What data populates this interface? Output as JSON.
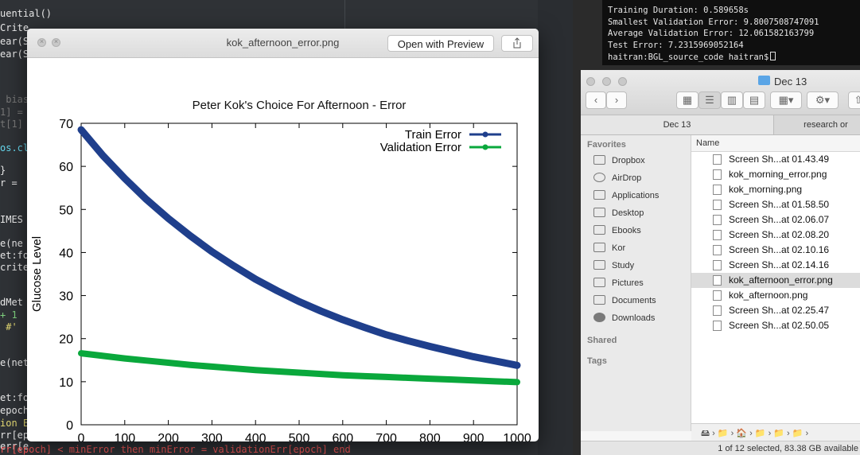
{
  "editor": {
    "lines": [
      {
        "t": "uential()",
        "c": ""
      },
      {
        "t": "Crite",
        "c": ""
      },
      {
        "t": "ear(S",
        "c": ""
      },
      {
        "t": "ear(S",
        "c": ""
      },
      {
        "t": " bias",
        "c": "dim"
      },
      {
        "t": "1] =",
        "c": "dim"
      },
      {
        "t": "t[1]",
        "c": "dim"
      },
      {
        "t": "os.cl",
        "c": "kw-c"
      },
      {
        "t": "}",
        "c": ""
      },
      {
        "t": "r =",
        "c": ""
      },
      {
        "t": "IMES",
        "c": ""
      },
      {
        "t": "e(ne",
        "c": ""
      },
      {
        "t": "et:fo",
        "c": ""
      },
      {
        "t": "crite",
        "c": ""
      },
      {
        "t": "dMet",
        "c": ""
      },
      {
        "t": "+ 1",
        "c": "kw-g"
      },
      {
        "t": " #'",
        "c": "kw-y"
      },
      {
        "t": "e(net",
        "c": ""
      },
      {
        "t": "et:fo",
        "c": ""
      },
      {
        "t": "epoch",
        "c": ""
      },
      {
        "t": "ion E",
        "c": "kw-y"
      },
      {
        "t": "rr[ep",
        "c": ""
      },
      {
        "t": "err[e",
        "c": ""
      },
      {
        "t": "rr[epoch] < minError then minError = validationErr[epoch] end",
        "c": "kw-r"
      }
    ]
  },
  "preview": {
    "window_title": "kok_afternoon_error.png",
    "open_with_label": "Open with Preview"
  },
  "chart_data": {
    "type": "line",
    "title": "Peter Kok's Choice For Afternoon - Error",
    "xlabel": "",
    "ylabel": "Glucose Level",
    "xlim": [
      0,
      1000
    ],
    "ylim": [
      0,
      70
    ],
    "xticks": [
      0,
      100,
      200,
      300,
      400,
      500,
      600,
      700,
      800,
      900,
      1000
    ],
    "yticks": [
      0,
      10,
      20,
      30,
      40,
      50,
      60,
      70
    ],
    "grid": false,
    "legend": "top-right",
    "x": [
      0,
      50,
      100,
      150,
      200,
      250,
      300,
      350,
      400,
      450,
      500,
      550,
      600,
      650,
      700,
      750,
      800,
      850,
      900,
      950,
      1000
    ],
    "series": [
      {
        "name": "Train Error",
        "color": "#1f3f8c",
        "values": [
          68.5,
          62.5,
          57.2,
          52.3,
          47.9,
          43.9,
          40.2,
          36.9,
          33.8,
          31.1,
          28.6,
          26.4,
          24.4,
          22.6,
          20.9,
          19.5,
          18.2,
          17.0,
          15.8,
          14.8,
          13.8
        ]
      },
      {
        "name": "Validation Error",
        "color": "#0aa83c",
        "values": [
          16.6,
          16.0,
          15.4,
          14.9,
          14.4,
          13.9,
          13.5,
          13.1,
          12.7,
          12.4,
          12.1,
          11.8,
          11.5,
          11.3,
          11.1,
          10.9,
          10.7,
          10.5,
          10.3,
          10.1,
          9.9
        ]
      }
    ]
  },
  "terminal": {
    "lines": [
      "Training Duration: 0.589658s",
      "Smallest Validation Error: 9.8007508747091",
      "Average Validation Error: 12.061582163799",
      "Test Error: 7.2315969052164",
      "haitran:BGL_source_code haitran$"
    ]
  },
  "finder": {
    "title": "Dec 13",
    "tabs": [
      "Dec 13",
      "research or"
    ],
    "sidebar_headers": {
      "favorites": "Favorites",
      "shared": "Shared",
      "tags": "Tags"
    },
    "sidebar_items": [
      "Dropbox",
      "AirDrop",
      "Applications",
      "Desktop",
      "Ebooks",
      "Kor",
      "Study",
      "Pictures",
      "Documents",
      "Downloads"
    ],
    "column_name": "Name",
    "files": [
      {
        "name": "Screen Sh...at 01.43.49",
        "selected": false
      },
      {
        "name": "kok_morning_error.png",
        "selected": false
      },
      {
        "name": "kok_morning.png",
        "selected": false
      },
      {
        "name": "Screen Sh...at 01.58.50",
        "selected": false
      },
      {
        "name": "Screen Sh...at 02.06.07",
        "selected": false
      },
      {
        "name": "Screen Sh...at 02.08.20",
        "selected": false
      },
      {
        "name": "Screen Sh...at 02.10.16",
        "selected": false
      },
      {
        "name": "Screen Sh...at 02.14.16",
        "selected": false
      },
      {
        "name": "kok_afternoon_error.png",
        "selected": true
      },
      {
        "name": "kok_afternoon.png",
        "selected": false
      },
      {
        "name": "Screen Sh...at 02.25.47",
        "selected": false
      },
      {
        "name": "Screen Sh...at 02.50.05",
        "selected": false
      }
    ],
    "status": "1 of 12 selected, 83.38 GB available"
  }
}
